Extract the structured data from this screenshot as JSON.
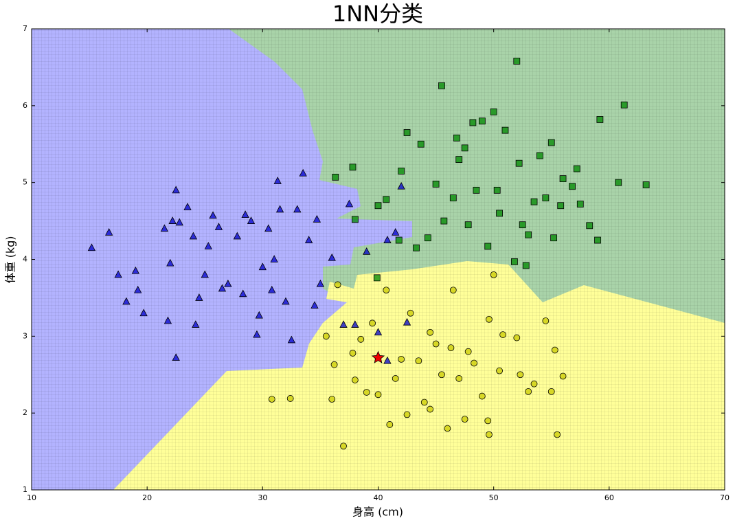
{
  "chart_data": {
    "type": "scatter",
    "title": "1NN分类",
    "x_label": "身高 (cm)",
    "y_label": "体重 (kg)",
    "xlim": [
      10,
      70
    ],
    "ylim": [
      1,
      7
    ],
    "xticks": [
      10,
      20,
      30,
      40,
      50,
      60,
      70
    ],
    "yticks": [
      1,
      2,
      3,
      4,
      5,
      6,
      7
    ],
    "series": [
      {
        "color": "#0000cc",
        "marker": "triangle",
        "x": [
          15.2,
          16.7,
          17.5,
          18.2,
          19.0,
          19.2,
          19.7,
          21.5,
          21.8,
          22.0,
          22.2,
          22.5,
          22.5,
          22.8,
          23.5,
          24.0,
          24.2,
          24.5,
          25.0,
          25.3,
          25.7,
          26.2,
          26.5,
          27.0,
          27.8,
          28.3,
          28.5,
          29.0,
          29.5,
          29.7,
          30.0,
          30.5,
          30.8,
          31.0,
          31.3,
          31.5,
          32.0,
          32.5,
          33.0,
          33.5,
          34.0,
          34.5,
          34.7,
          35.0,
          36.0,
          37.0,
          38.0,
          37.5,
          39.0,
          40.0,
          40.8,
          40.8,
          41.5,
          42.5,
          42.0
        ],
        "y": [
          4.15,
          4.35,
          3.8,
          3.45,
          3.85,
          3.6,
          3.3,
          4.4,
          3.2,
          3.95,
          4.5,
          4.9,
          2.72,
          4.48,
          4.68,
          4.3,
          3.15,
          3.5,
          3.8,
          4.17,
          4.57,
          4.42,
          3.62,
          3.68,
          4.3,
          3.55,
          4.58,
          4.5,
          3.02,
          3.27,
          3.9,
          4.4,
          3.6,
          4.0,
          5.02,
          4.65,
          3.45,
          2.95,
          4.65,
          5.12,
          4.25,
          3.4,
          4.52,
          3.68,
          4.02,
          3.15,
          3.15,
          4.72,
          4.1,
          3.05,
          2.68,
          4.25,
          4.35,
          3.18,
          4.95
        ]
      },
      {
        "color": "#008800",
        "marker": "square",
        "x": [
          39.9,
          38.0,
          37.8,
          36.3,
          40.0,
          40.7,
          41.8,
          42.0,
          42.5,
          43.3,
          43.7,
          44.3,
          45.0,
          45.5,
          45.7,
          46.5,
          46.8,
          47.0,
          47.5,
          47.8,
          48.2,
          48.5,
          49.0,
          49.5,
          50.0,
          50.3,
          50.5,
          51.0,
          51.8,
          52.0,
          52.2,
          52.5,
          52.8,
          53.0,
          53.5,
          54.0,
          54.5,
          55.0,
          55.2,
          55.8,
          56.0,
          56.8,
          57.2,
          57.5,
          58.3,
          59.0,
          59.2,
          60.8,
          61.3,
          63.2
        ],
        "y": [
          3.76,
          4.52,
          5.2,
          5.07,
          4.7,
          4.78,
          4.25,
          5.15,
          5.65,
          4.15,
          5.5,
          4.28,
          4.98,
          6.26,
          4.5,
          4.8,
          5.58,
          5.3,
          5.45,
          4.45,
          5.78,
          4.9,
          5.8,
          4.17,
          5.92,
          4.9,
          4.6,
          5.68,
          3.97,
          6.58,
          5.25,
          4.45,
          3.92,
          4.32,
          4.75,
          5.35,
          4.8,
          5.52,
          4.28,
          4.7,
          5.05,
          4.95,
          5.18,
          4.72,
          4.44,
          4.25,
          5.82,
          5.0,
          6.01,
          4.97
        ]
      },
      {
        "color": "#cccc00",
        "marker": "circle",
        "x": [
          30.8,
          32.4,
          35.5,
          36.0,
          36.2,
          36.5,
          37.0,
          37.8,
          38.0,
          38.5,
          39.0,
          39.5,
          40.0,
          40.7,
          41.0,
          41.5,
          42.0,
          42.5,
          42.8,
          43.5,
          44.0,
          44.5,
          45.0,
          45.5,
          46.0,
          46.3,
          46.5,
          47.0,
          47.5,
          47.8,
          48.3,
          49.0,
          49.5,
          49.6,
          50.0,
          50.5,
          50.8,
          52.0,
          52.3,
          53.0,
          53.5,
          54.5,
          55.0,
          55.3,
          55.5,
          56.0,
          49.6,
          44.5
        ],
        "y": [
          2.18,
          2.19,
          3.0,
          2.18,
          2.63,
          3.67,
          1.57,
          2.78,
          2.43,
          2.96,
          2.27,
          3.17,
          2.24,
          3.6,
          1.85,
          2.45,
          2.7,
          1.98,
          3.3,
          2.68,
          2.14,
          3.05,
          2.9,
          2.5,
          1.8,
          2.85,
          3.6,
          2.45,
          1.92,
          2.8,
          2.65,
          2.22,
          1.9,
          3.22,
          3.8,
          2.55,
          3.02,
          2.98,
          2.5,
          2.28,
          2.38,
          3.2,
          2.28,
          2.82,
          1.72,
          2.48,
          1.72,
          2.05
        ]
      },
      {
        "color": "#ee0000",
        "marker": "star",
        "x": [
          40.0
        ],
        "y": [
          2.72
        ]
      }
    ]
  }
}
